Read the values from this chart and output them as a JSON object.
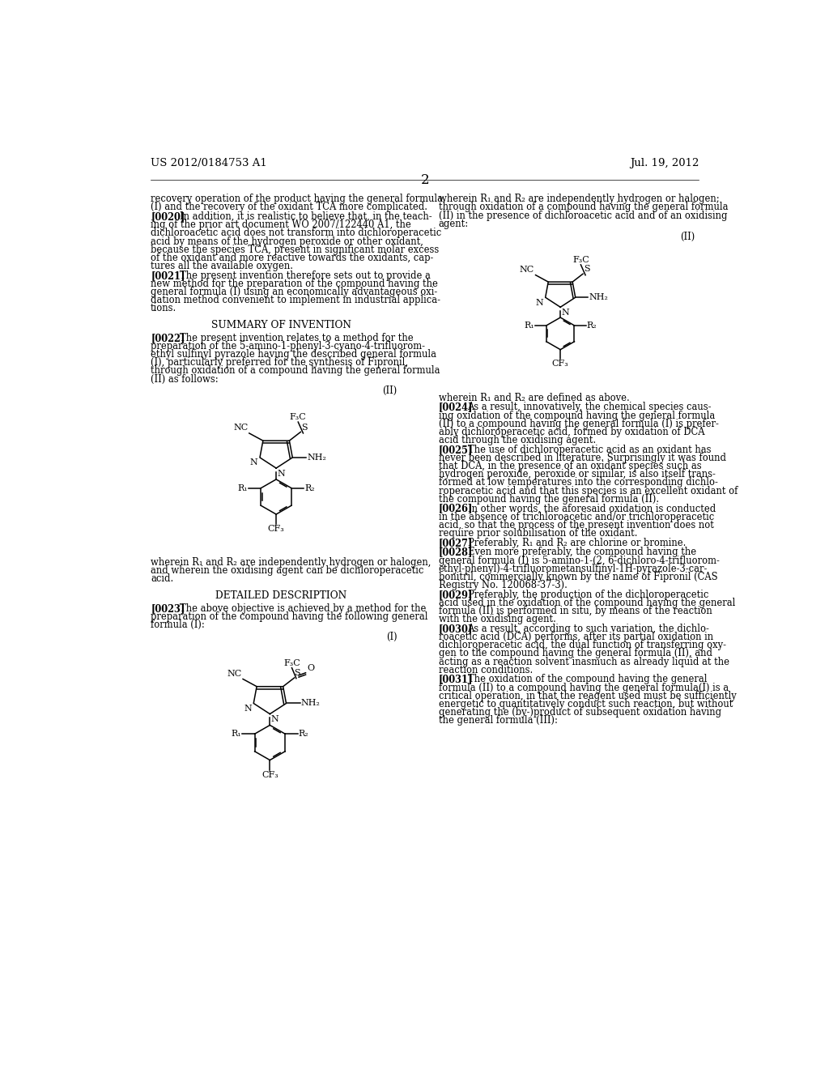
{
  "bg_color": "#ffffff",
  "header_left": "US 2012/0184753 A1",
  "header_right": "Jul. 19, 2012",
  "page_number": "2"
}
